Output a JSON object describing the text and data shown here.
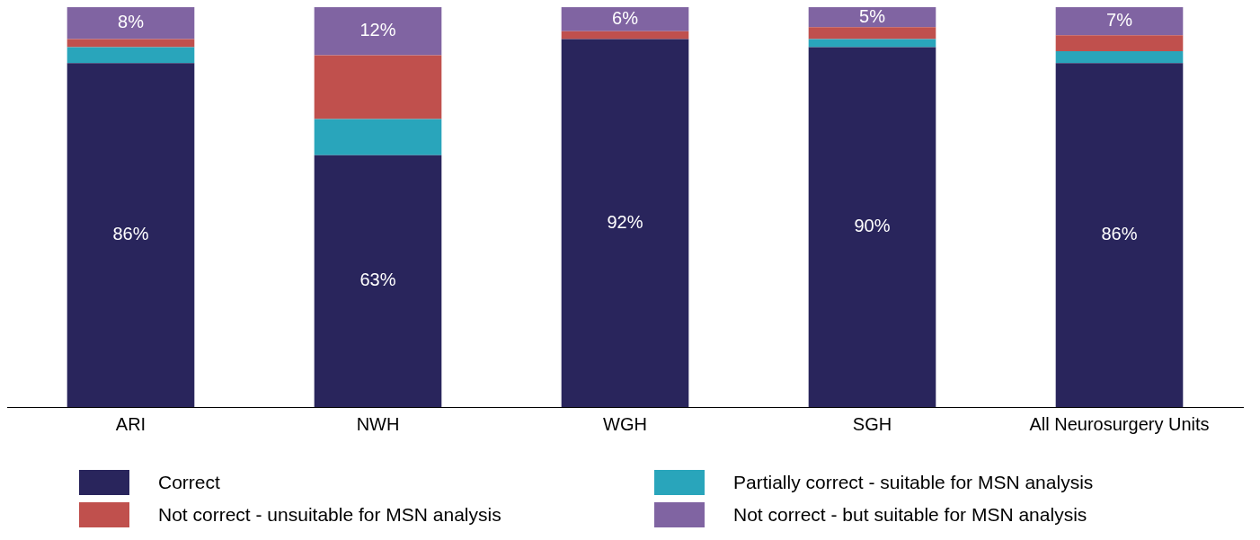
{
  "chart_data": {
    "type": "bar",
    "stacked": true,
    "categories": [
      "ARI",
      "NWH",
      "WGH",
      "SGH",
      "All Neurosurgery Units"
    ],
    "legend": "bottom",
    "grid": false,
    "series": [
      {
        "name": "Correct",
        "color": "#29255c",
        "values": [
          86,
          63,
          92,
          90,
          86
        ],
        "value_labels": [
          "86%",
          "63%",
          "92%",
          "90%",
          "86%"
        ]
      },
      {
        "name": "Partially correct - suitable for MSN analysis",
        "color": "#29a5bb",
        "values": [
          4,
          9,
          0,
          2,
          3
        ],
        "value_labels": [
          null,
          null,
          null,
          null,
          null
        ]
      },
      {
        "name": "Not correct - unsuitable for MSN analysis",
        "color": "#c0504d",
        "values": [
          2,
          16,
          2,
          3,
          4
        ],
        "value_labels": [
          null,
          null,
          null,
          null,
          null
        ]
      },
      {
        "name": "Not correct - but suitable for MSN analysis",
        "color": "#8064a2",
        "values": [
          8,
          12,
          6,
          5,
          7
        ],
        "value_labels": [
          "8%",
          "12%",
          "6%",
          "5%",
          "7%"
        ]
      }
    ]
  }
}
